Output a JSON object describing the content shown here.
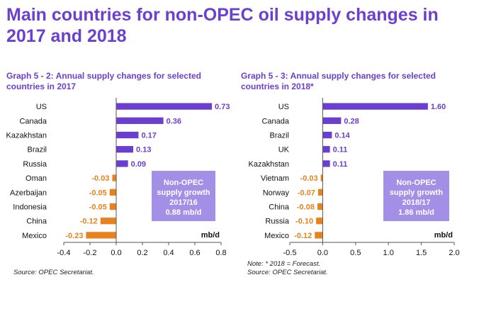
{
  "page_title": "Main countries for non-OPEC oil supply changes in 2017 and 2018",
  "colors": {
    "title": "#6b3fcf",
    "positive": "#6a3fd0",
    "negative": "#e8821e",
    "box_fill": "#a48fe6",
    "box_text": "#ffffff"
  },
  "left": {
    "title": "Graph 5 - 2: Annual supply changes for selected countries in 2017",
    "source": "Source: OPEC Secretariat.",
    "box_lines": [
      "Non-OPEC",
      "supply growth",
      "2017/16",
      "0.88 mb/d"
    ],
    "unit": "mb/d"
  },
  "right": {
    "title": "Graph 5 - 3: Annual supply changes for selected countries in 2018*",
    "note": "Note: * 2018 = Forecast.",
    "source": "Source: OPEC Secretariat.",
    "box_lines": [
      "Non-OPEC",
      "supply growth",
      "2018/17",
      "1.86 mb/d"
    ],
    "unit": "mb/d"
  },
  "chart_data": [
    {
      "type": "bar",
      "orientation": "horizontal",
      "categories": [
        "US",
        "Canada",
        "Kazakhstan",
        "Brazil",
        "Russia",
        "Oman",
        "Azerbaijan",
        "Indonesia",
        "China",
        "Mexico"
      ],
      "values": [
        0.73,
        0.36,
        0.17,
        0.13,
        0.09,
        -0.03,
        -0.05,
        -0.05,
        -0.12,
        -0.23
      ],
      "labels": [
        "0.73",
        "0.36",
        "0.17",
        "0.13",
        "0.09",
        "-0.03",
        "-0.05",
        "-0.05",
        "-0.12",
        "-0.23"
      ],
      "xlim": [
        -0.4,
        0.8
      ],
      "ticks": [
        -0.4,
        -0.2,
        0.0,
        0.2,
        0.4,
        0.6,
        0.8
      ],
      "tick_labels": [
        "-0.4",
        "-0.2",
        "0.0",
        "0.2",
        "0.4",
        "0.6",
        "0.8"
      ],
      "xlabel": "mb/d",
      "grid": false,
      "legend": "none"
    },
    {
      "type": "bar",
      "orientation": "horizontal",
      "categories": [
        "US",
        "Canada",
        "Brazil",
        "UK",
        "Kazakhstan",
        "Vietnam",
        "Norway",
        "China",
        "Russia",
        "Mexico"
      ],
      "values": [
        1.6,
        0.28,
        0.14,
        0.11,
        0.11,
        -0.03,
        -0.07,
        -0.08,
        -0.1,
        -0.12
      ],
      "labels": [
        "1.60",
        "0.28",
        "0.14",
        "0.11",
        "0.11",
        "-0.03",
        "-0.07",
        "-0.08",
        "-0.10",
        "-0.12"
      ],
      "xlim": [
        -0.5,
        2.0
      ],
      "ticks": [
        -0.5,
        0.0,
        0.5,
        1.0,
        1.5,
        2.0
      ],
      "tick_labels": [
        "-0.5",
        "0.0",
        "0.5",
        "1.0",
        "1.5",
        "2.0"
      ],
      "xlabel": "mb/d",
      "grid": false,
      "legend": "none"
    }
  ]
}
